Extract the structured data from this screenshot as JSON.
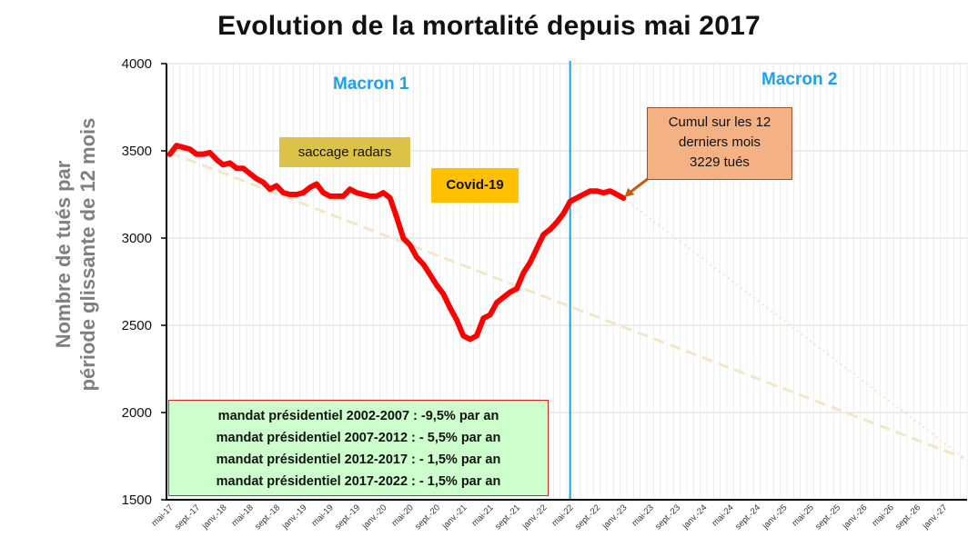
{
  "chart_data": {
    "type": "line",
    "title": "Evolution de la mortalité depuis mai 2017",
    "ylabel_line1": "Nombre de tués par",
    "ylabel_line2": "période  glissante de 12 mois",
    "ylim": [
      1500,
      4000
    ],
    "yticks": [
      1500,
      2000,
      2500,
      3000,
      3500,
      4000
    ],
    "xtick_labels": [
      "mai-17",
      "sept.-17",
      "janv.-18",
      "mai-18",
      "sept.-18",
      "janv.-19",
      "mai-19",
      "sept.-19",
      "janv.-20",
      "mai-20",
      "sept.-20",
      "janv.-21",
      "mai-21",
      "sept.-21",
      "janv.-22",
      "mai-22",
      "sept.-22",
      "janv.-23",
      "mai-23",
      "sept.-23",
      "janv.-24",
      "mai-24",
      "sept.-24",
      "janv.-25",
      "mai-25",
      "sept.-25",
      "janv.-26",
      "mai-26",
      "sept.-26",
      "janv.-27"
    ],
    "grid": true,
    "series": [
      {
        "color": "#ff0000",
        "style": "solid",
        "values": [
          3480,
          3530,
          3520,
          3510,
          3480,
          3480,
          3490,
          3450,
          3420,
          3430,
          3400,
          3400,
          3370,
          3340,
          3320,
          3280,
          3300,
          3260,
          3250,
          3250,
          3260,
          3290,
          3310,
          3260,
          3240,
          3240,
          3240,
          3280,
          3260,
          3250,
          3240,
          3240,
          3260,
          3230,
          3120,
          3000,
          2960,
          2890,
          2850,
          2790,
          2730,
          2680,
          2600,
          2530,
          2440,
          2420,
          2440,
          2540,
          2560,
          2630,
          2660,
          2690,
          2710,
          2800,
          2860,
          2940,
          3020,
          3050,
          3090,
          3140,
          3210,
          3230,
          3250,
          3270,
          3270,
          3260,
          3270,
          3250,
          3229
        ]
      },
      {
        "color": "#f3e6c6",
        "style": "dashed",
        "x_range": [
          0,
          119
        ],
        "y_range": [
          3490,
          1740
        ]
      },
      {
        "color": "#f3e6c6",
        "style": "dotted",
        "x_range": [
          68,
          119
        ],
        "y_range": [
          3229,
          1740
        ]
      }
    ],
    "vline_at_month": 60,
    "vline_label": "mai-22",
    "vline_color": "#1aa3e8"
  },
  "annotations": {
    "macron1": "Macron 1",
    "macron2": "Macron 2",
    "saccage": "saccage radars",
    "covid": "Covid-19",
    "cumul_line1": "Cumul sur les 12",
    "cumul_line2": "derniers mois",
    "cumul_line3": "3229 tués",
    "mandates": [
      "mandat présidentiel 2002-2007 : -9,5% par an",
      "mandat présidentiel 2007-2012 : - 5,5% par an",
      "mandat présidentiel 2012-2017 : - 1,5% par an",
      "mandat présidentiel 2017-2022 : - 1,5% par an"
    ]
  },
  "colors": {
    "line": "#ff0000",
    "trend": "#f3e6c6",
    "vline": "#1aa3e8",
    "saccage_bg": "#dcc246",
    "covid_bg": "#ffc000",
    "cumul_bg": "#f4b183",
    "mandate_bg": "#ccffcc"
  }
}
